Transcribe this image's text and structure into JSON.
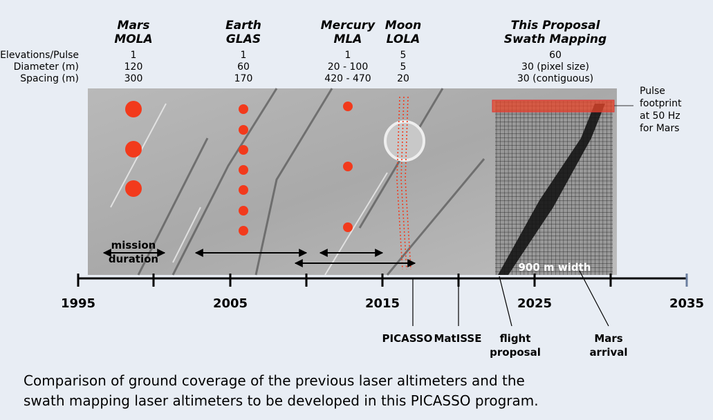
{
  "row_labels": [
    "Elevations/Pulse",
    "Diameter (m)",
    "Spacing (m)"
  ],
  "instruments": [
    {
      "name": "Mars",
      "instrument": "MOLA",
      "elevations": 1,
      "diameter": 120,
      "spacing": 300
    },
    {
      "name": "Earth",
      "instrument": "GLAS",
      "elevations": 1,
      "diameter": 60,
      "spacing": 170
    },
    {
      "name": "Mercury",
      "instrument": "MLA",
      "elevations": 1,
      "diameter": "20 - 100",
      "spacing": "420 - 470"
    },
    {
      "name": "Moon",
      "instrument": "LOLA",
      "elevations": 5,
      "diameter": 5,
      "spacing": 20
    },
    {
      "name": "This Proposal",
      "instrument": "Swath Mapping",
      "elevations": 60,
      "diameter": "30 (pixel size)",
      "spacing": "30 (contiguous)"
    }
  ],
  "footprint_note": [
    "Pulse",
    "footprint",
    "at 50 Hz",
    "for Mars"
  ],
  "mission_duration": [
    "mission",
    "duration"
  ],
  "swath_width": "900 m width",
  "years": [
    1995,
    2005,
    2015,
    2025,
    2035
  ],
  "milestones": [
    {
      "lines": [
        "PICASSO"
      ]
    },
    {
      "lines": [
        "MatISSE"
      ]
    },
    {
      "lines": [
        "flight",
        "proposal"
      ]
    },
    {
      "lines": [
        "Mars",
        "arrival"
      ]
    }
  ],
  "caption": [
    "Comparison of ground coverage of the previous laser altimeters and the",
    "swath mapping laser altimeters to be developed in this PICASSO program."
  ]
}
